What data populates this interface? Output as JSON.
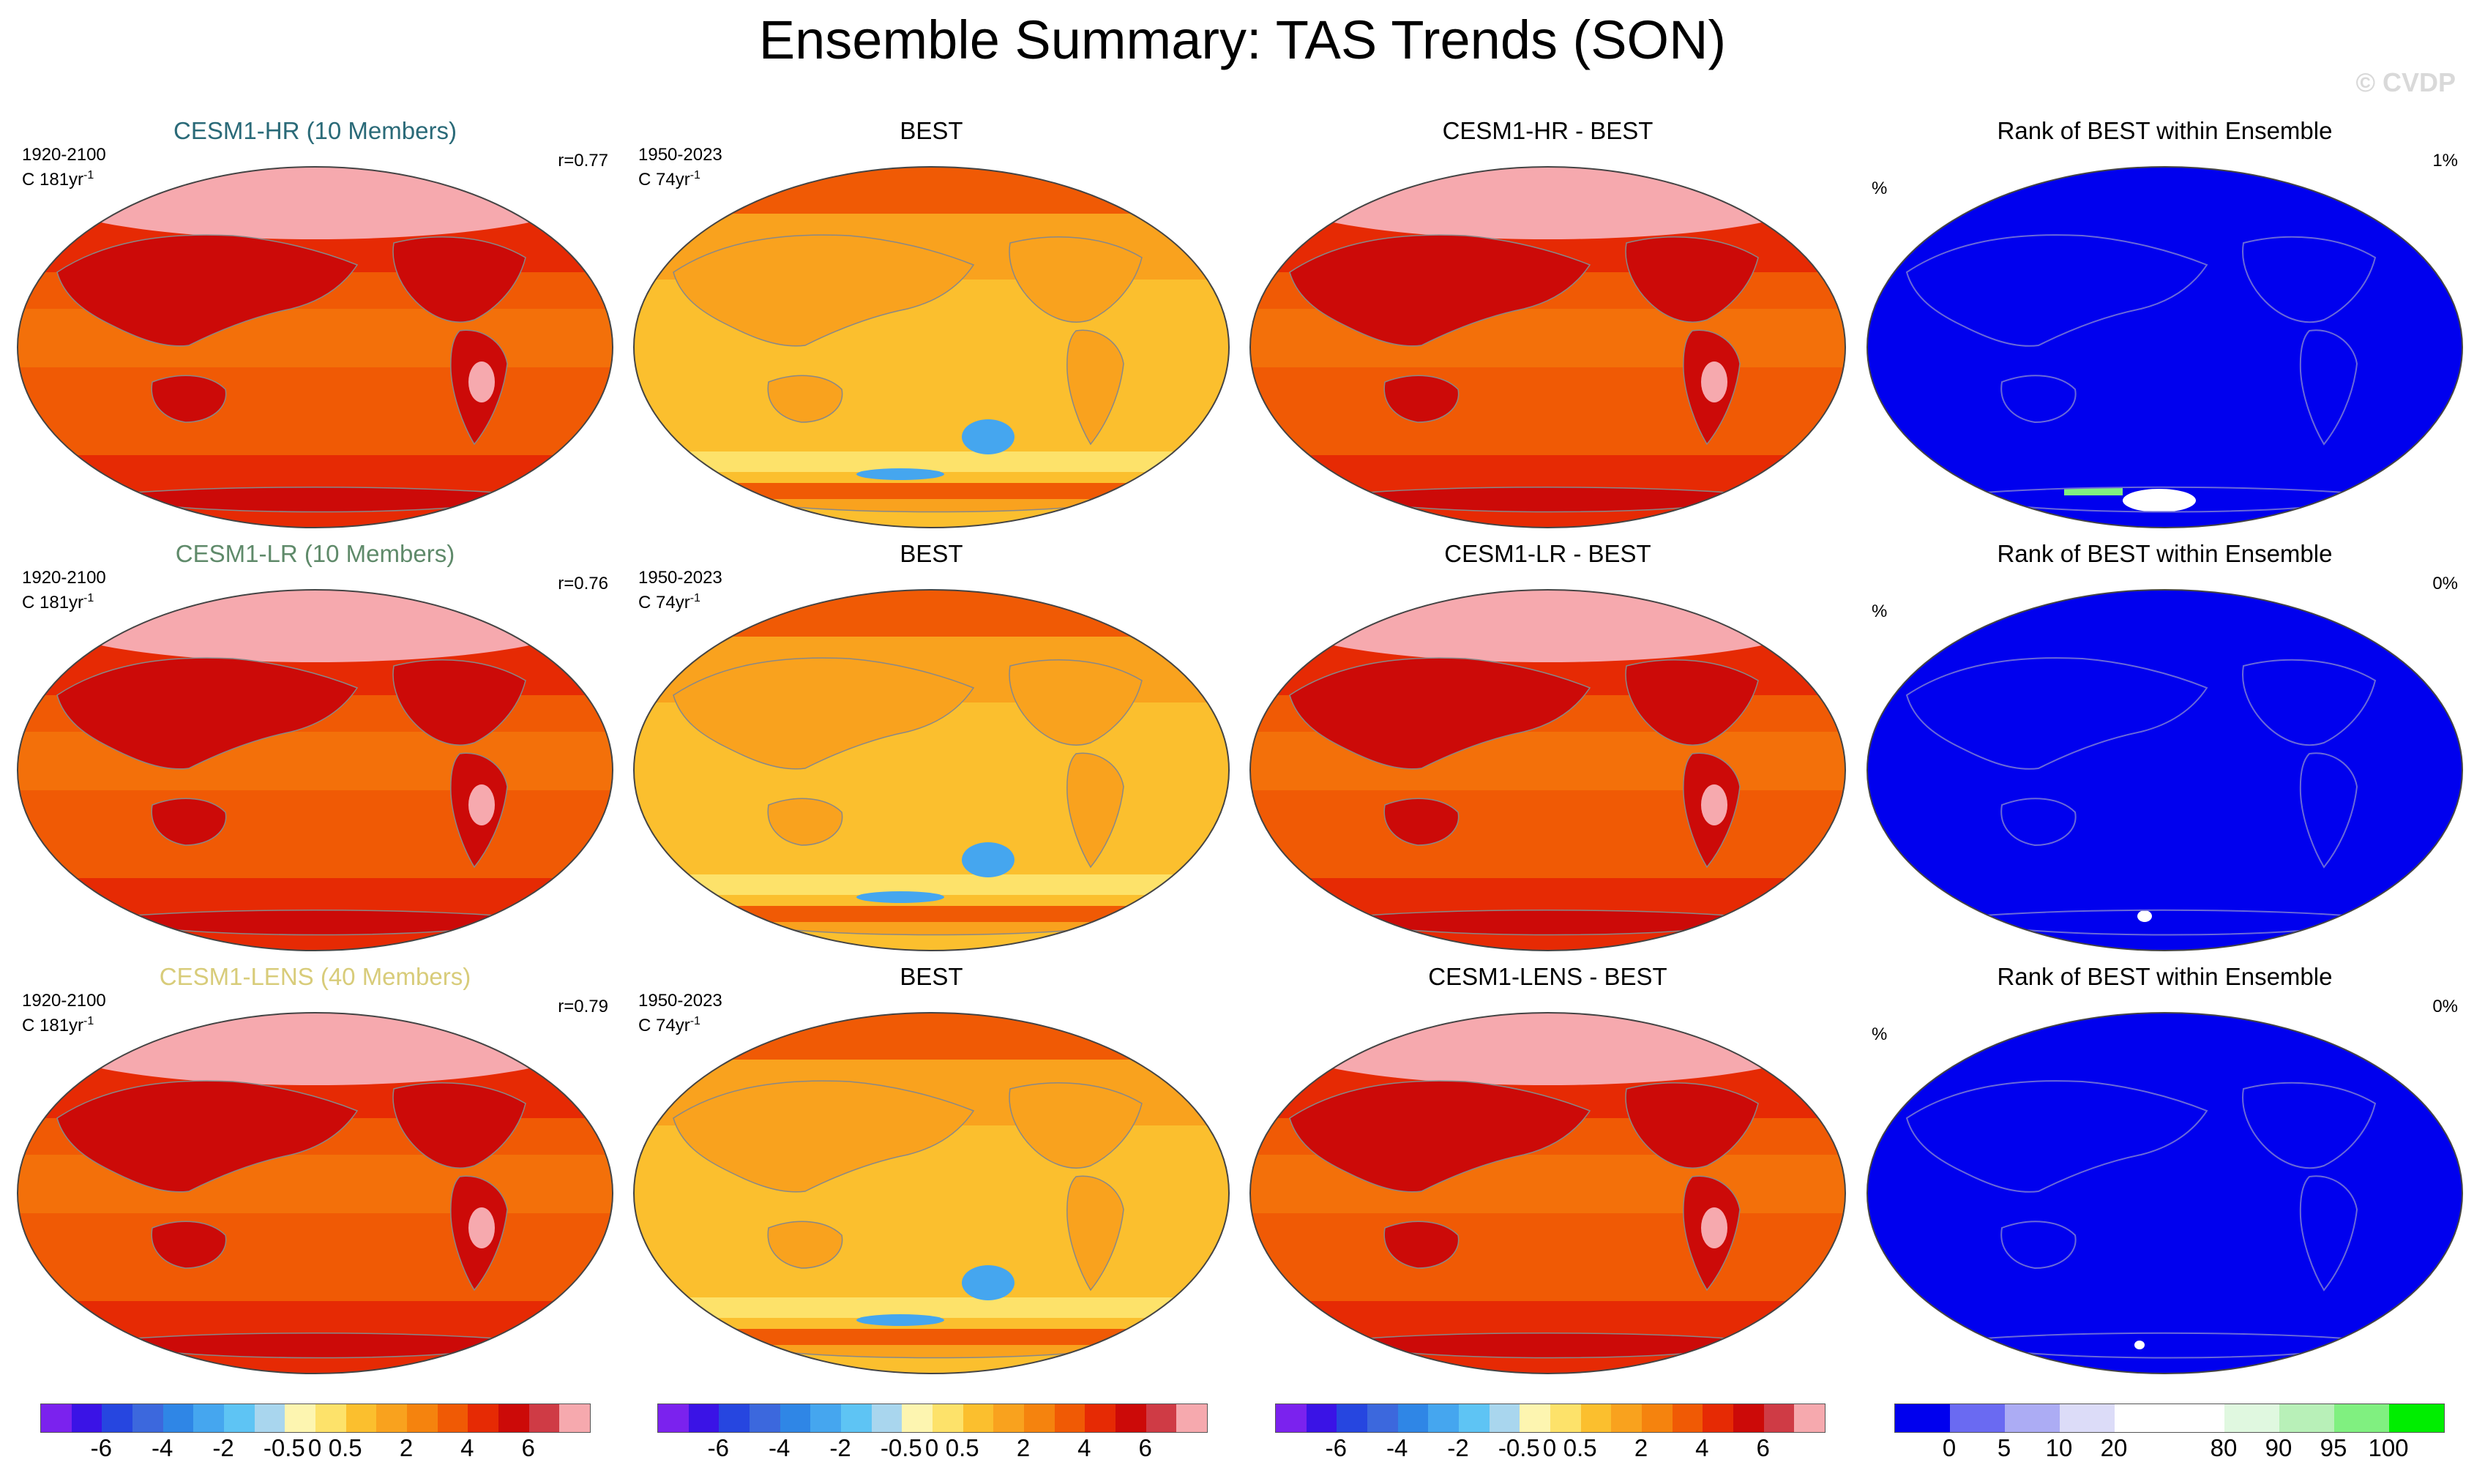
{
  "title": "Ensemble Summary: TAS Trends (SON)",
  "watermark": "© CVDP",
  "rows": [
    {
      "ensemble": {
        "title": "CESM1-HR (10 Members)",
        "title_color": "#2a6a78",
        "period": "1920-2100",
        "units": "C 181yr",
        "units_sup": "-1",
        "r": "r=0.77",
        "style": "hot"
      },
      "best": {
        "title": "BEST",
        "period": "1950-2023",
        "units": "C 74yr",
        "units_sup": "-1",
        "style": "warm"
      },
      "diff": {
        "title": "CESM1-HR - BEST",
        "style": "hot"
      },
      "rank": {
        "title": "Rank of BEST within Ensemble",
        "left": "%",
        "right": "1%",
        "style": "rank"
      }
    },
    {
      "ensemble": {
        "title": "CESM1-LR (10 Members)",
        "title_color": "#5f8a6a",
        "period": "1920-2100",
        "units": "C 181yr",
        "units_sup": "-1",
        "r": "r=0.76",
        "style": "hot"
      },
      "best": {
        "title": "BEST",
        "period": "1950-2023",
        "units": "C 74yr",
        "units_sup": "-1",
        "style": "warm"
      },
      "diff": {
        "title": "CESM1-LR - BEST",
        "style": "hot"
      },
      "rank": {
        "title": "Rank of BEST within Ensemble",
        "left": "%",
        "right": "0%",
        "style": "rank"
      }
    },
    {
      "ensemble": {
        "title": "CESM1-LENS (40 Members)",
        "title_color": "#d8cc7a",
        "period": "1920-2100",
        "units": "C 181yr",
        "units_sup": "-1",
        "r": "r=0.79",
        "style": "hot"
      },
      "best": {
        "title": "BEST",
        "period": "1950-2023",
        "units": "C 74yr",
        "units_sup": "-1",
        "style": "warm"
      },
      "diff": {
        "title": "CESM1-LENS - BEST",
        "style": "hot"
      },
      "rank": {
        "title": "Rank of BEST within Ensemble",
        "left": "%",
        "right": "0%",
        "style": "rank"
      }
    }
  ],
  "colorbars": [
    {
      "colors": [
        "#7b22ee",
        "#3a13e6",
        "#2646e0",
        "#3c68dd",
        "#2f86e6",
        "#45a6ef",
        "#5ec4f4",
        "#a9d6ee",
        "#fdf5b0",
        "#fde26a",
        "#fbbf2e",
        "#f9a21e",
        "#f5830e",
        "#f05a05",
        "#e62a04",
        "#cc0a08",
        "#cf3b45",
        "#f6a9ae"
      ],
      "ticks": [
        "-6",
        "-4",
        "-2",
        "-0.5",
        "0",
        "0.5",
        "2",
        "4",
        "6"
      ]
    },
    {
      "colors": [
        "#7b22ee",
        "#3a13e6",
        "#2646e0",
        "#3c68dd",
        "#2f86e6",
        "#45a6ef",
        "#5ec4f4",
        "#a9d6ee",
        "#fdf5b0",
        "#fde26a",
        "#fbbf2e",
        "#f9a21e",
        "#f5830e",
        "#f05a05",
        "#e62a04",
        "#cc0a08",
        "#cf3b45",
        "#f6a9ae"
      ],
      "ticks": [
        "-6",
        "-4",
        "-2",
        "-0.5",
        "0",
        "0.5",
        "2",
        "4",
        "6"
      ]
    },
    {
      "colors": [
        "#7b22ee",
        "#3a13e6",
        "#2646e0",
        "#3c68dd",
        "#2f86e6",
        "#45a6ef",
        "#5ec4f4",
        "#a9d6ee",
        "#fdf5b0",
        "#fde26a",
        "#fbbf2e",
        "#f9a21e",
        "#f5830e",
        "#f05a05",
        "#e62a04",
        "#cc0a08",
        "#cf3b45",
        "#f6a9ae"
      ],
      "ticks": [
        "-6",
        "-4",
        "-2",
        "-0.5",
        "0",
        "0.5",
        "2",
        "4",
        "6"
      ]
    },
    {
      "colors": [
        "#0000ee",
        "#6a6af2",
        "#acacf4",
        "#dcdcf8",
        "#ffffff",
        "#ffffff",
        "#e0f8e0",
        "#b8f0b8",
        "#80f080",
        "#00ee00"
      ],
      "ticks": [
        "0",
        "5",
        "10",
        "20",
        "80",
        "90",
        "95",
        "100"
      ]
    }
  ],
  "palette": {
    "hot": {
      "base": "#f05a05",
      "mid": "#e62a04",
      "high": "#cc0a08",
      "cap": "#f6a9ae",
      "low": "#f5830e"
    },
    "warm": {
      "base": "#fbbf2e",
      "mid": "#f9a21e",
      "low": "#fde26a",
      "high": "#f05a05",
      "cold": "#45a6ef"
    },
    "rank": {
      "base": "#0000ee",
      "accent": "#80f080",
      "white": "#ffffff"
    }
  }
}
